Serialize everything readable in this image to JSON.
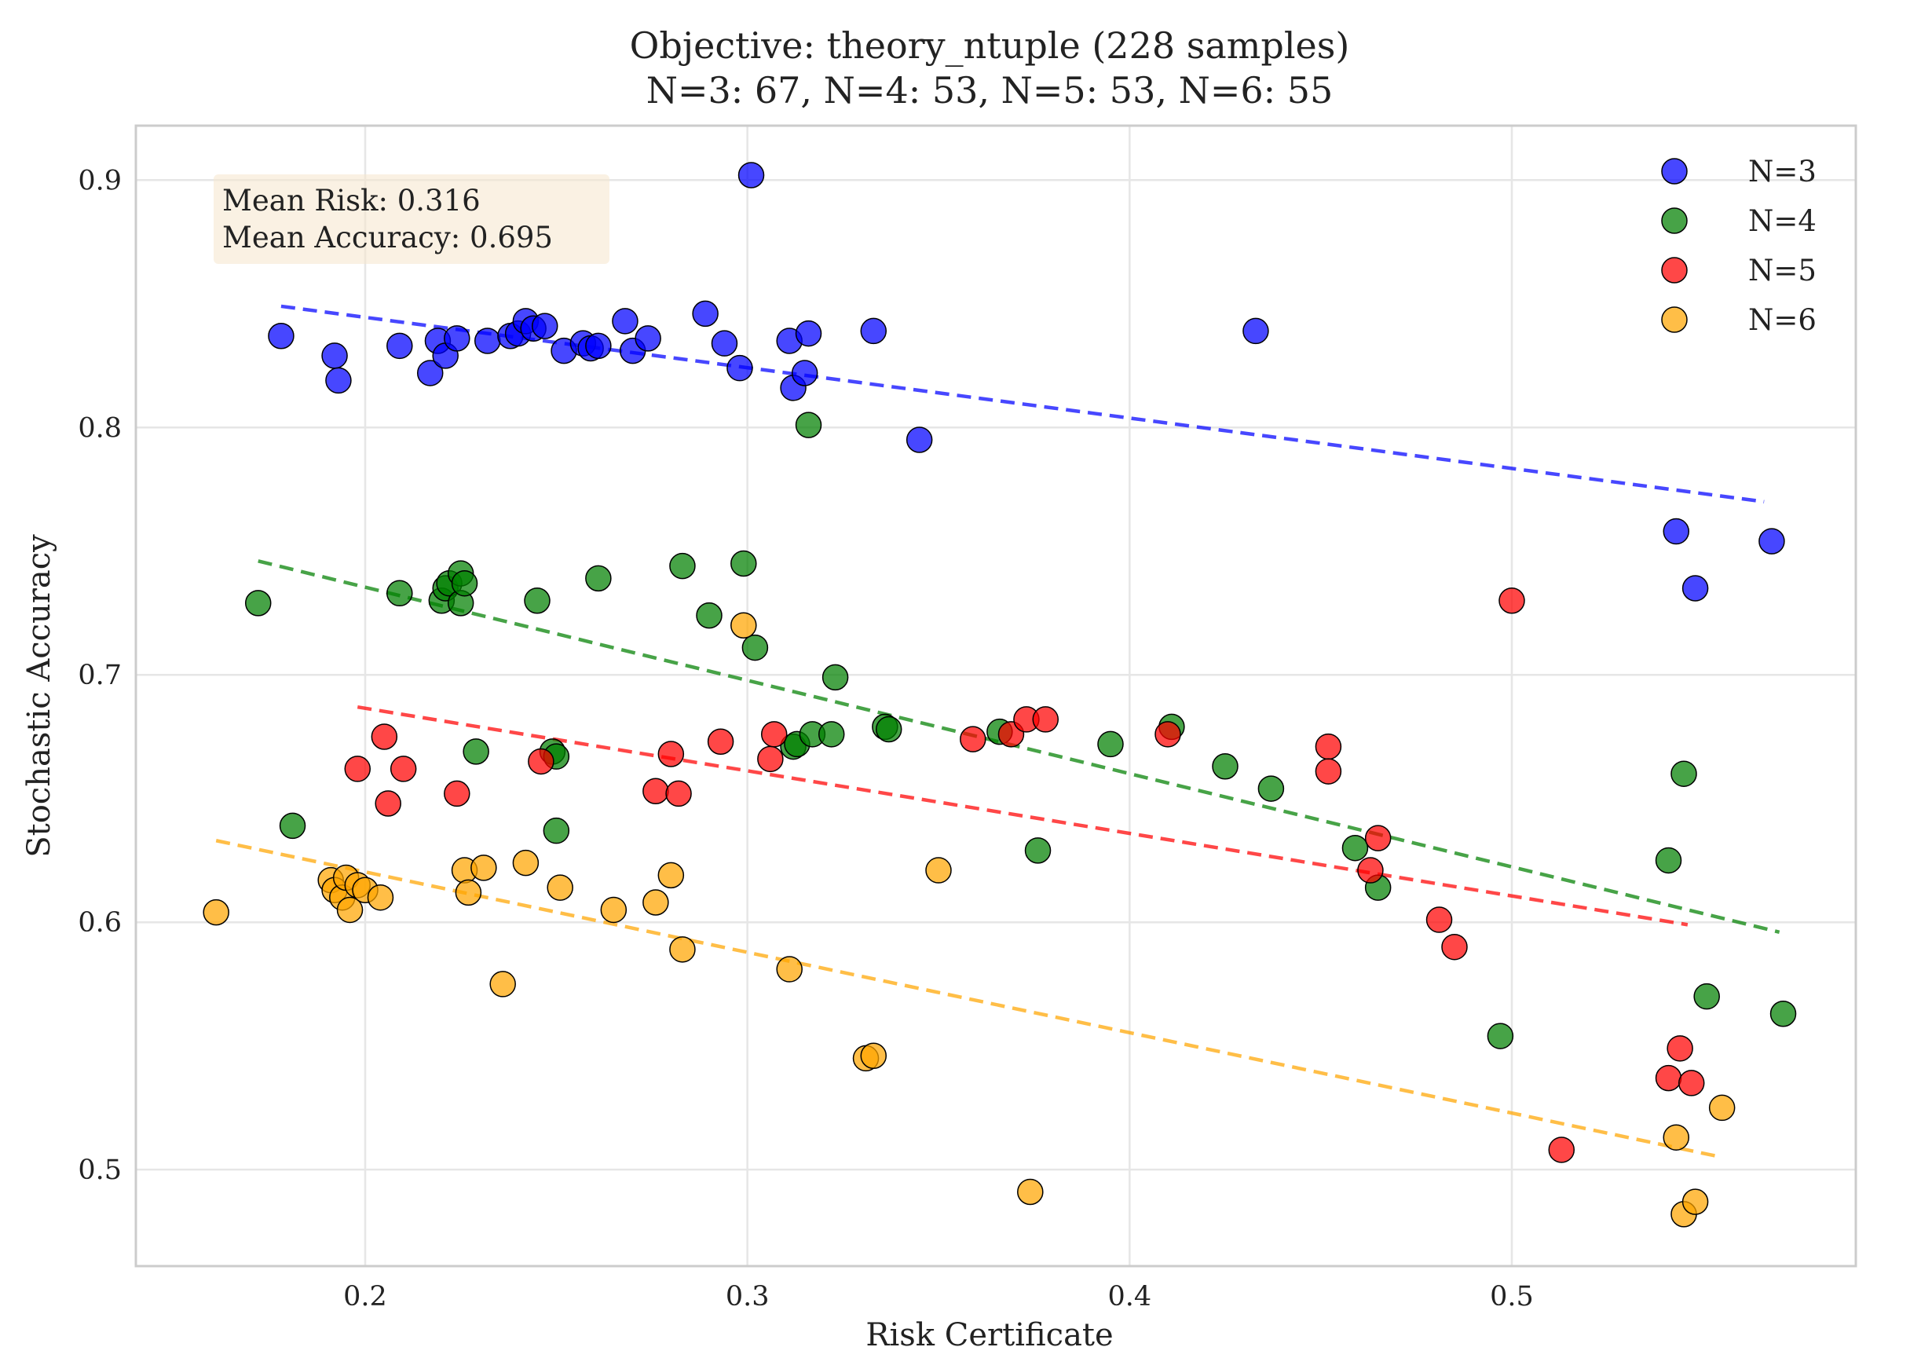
{
  "chart_data": {
    "type": "scatter",
    "title_line1": "Objective: theory_ntuple (228 samples)",
    "title_line2": "N=3: 67, N=4: 53, N=5: 53, N=6: 55",
    "xlabel": "Risk Certificate",
    "ylabel": "Stochastic Accuracy",
    "xlim": [
      0.14,
      0.59
    ],
    "ylim": [
      0.461,
      0.922
    ],
    "xticks": [
      0.2,
      0.3,
      0.4,
      0.5
    ],
    "xtick_labels": [
      "0.2",
      "0.3",
      "0.4",
      "0.5"
    ],
    "yticks": [
      0.5,
      0.6,
      0.7,
      0.8,
      0.9
    ],
    "ytick_labels": [
      "0.5",
      "0.6",
      "0.7",
      "0.8",
      "0.9"
    ],
    "grid": true,
    "legend_position": "top-right",
    "stats_box": {
      "line1": "Mean Risk: 0.316",
      "line2": "Mean Accuracy: 0.695",
      "background": "#f5e6cc"
    },
    "series": [
      {
        "name": "N=3",
        "color": "#0000ff",
        "trend": [
          [
            0.178,
            0.849
          ],
          [
            0.566,
            0.77
          ]
        ],
        "points": [
          [
            0.178,
            0.837
          ],
          [
            0.192,
            0.829
          ],
          [
            0.193,
            0.819
          ],
          [
            0.209,
            0.833
          ],
          [
            0.217,
            0.822
          ],
          [
            0.219,
            0.835
          ],
          [
            0.221,
            0.829
          ],
          [
            0.224,
            0.836
          ],
          [
            0.232,
            0.835
          ],
          [
            0.238,
            0.837
          ],
          [
            0.24,
            0.838
          ],
          [
            0.242,
            0.843
          ],
          [
            0.244,
            0.84
          ],
          [
            0.247,
            0.841
          ],
          [
            0.252,
            0.831
          ],
          [
            0.257,
            0.834
          ],
          [
            0.259,
            0.832
          ],
          [
            0.261,
            0.833
          ],
          [
            0.268,
            0.843
          ],
          [
            0.27,
            0.831
          ],
          [
            0.274,
            0.836
          ],
          [
            0.289,
            0.846
          ],
          [
            0.294,
            0.834
          ],
          [
            0.298,
            0.824
          ],
          [
            0.301,
            0.902
          ],
          [
            0.311,
            0.835
          ],
          [
            0.312,
            0.816
          ],
          [
            0.315,
            0.822
          ],
          [
            0.316,
            0.838
          ],
          [
            0.333,
            0.839
          ],
          [
            0.345,
            0.795
          ],
          [
            0.433,
            0.839
          ],
          [
            0.543,
            0.758
          ],
          [
            0.548,
            0.735
          ],
          [
            0.568,
            0.754
          ]
        ]
      },
      {
        "name": "N=4",
        "color": "#008000",
        "trend": [
          [
            0.172,
            0.746
          ],
          [
            0.57,
            0.596
          ]
        ],
        "points": [
          [
            0.172,
            0.729
          ],
          [
            0.181,
            0.639
          ],
          [
            0.209,
            0.733
          ],
          [
            0.22,
            0.73
          ],
          [
            0.221,
            0.735
          ],
          [
            0.222,
            0.737
          ],
          [
            0.225,
            0.741
          ],
          [
            0.225,
            0.729
          ],
          [
            0.226,
            0.737
          ],
          [
            0.229,
            0.669
          ],
          [
            0.245,
            0.73
          ],
          [
            0.249,
            0.669
          ],
          [
            0.25,
            0.667
          ],
          [
            0.25,
            0.637
          ],
          [
            0.261,
            0.739
          ],
          [
            0.283,
            0.744
          ],
          [
            0.29,
            0.724
          ],
          [
            0.299,
            0.745
          ],
          [
            0.302,
            0.711
          ],
          [
            0.312,
            0.671
          ],
          [
            0.313,
            0.672
          ],
          [
            0.316,
            0.801
          ],
          [
            0.317,
            0.676
          ],
          [
            0.322,
            0.676
          ],
          [
            0.323,
            0.699
          ],
          [
            0.336,
            0.679
          ],
          [
            0.337,
            0.678
          ],
          [
            0.366,
            0.677
          ],
          [
            0.376,
            0.629
          ],
          [
            0.395,
            0.672
          ],
          [
            0.411,
            0.679
          ],
          [
            0.425,
            0.663
          ],
          [
            0.437,
            0.654
          ],
          [
            0.459,
            0.63
          ],
          [
            0.465,
            0.614
          ],
          [
            0.497,
            0.554
          ],
          [
            0.541,
            0.625
          ],
          [
            0.545,
            0.66
          ],
          [
            0.551,
            0.57
          ],
          [
            0.571,
            0.563
          ]
        ]
      },
      {
        "name": "N=5",
        "color": "#ff0000",
        "trend": [
          [
            0.198,
            0.687
          ],
          [
            0.546,
            0.599
          ]
        ],
        "points": [
          [
            0.198,
            0.662
          ],
          [
            0.205,
            0.675
          ],
          [
            0.206,
            0.648
          ],
          [
            0.21,
            0.662
          ],
          [
            0.224,
            0.652
          ],
          [
            0.246,
            0.665
          ],
          [
            0.276,
            0.653
          ],
          [
            0.28,
            0.668
          ],
          [
            0.282,
            0.652
          ],
          [
            0.293,
            0.673
          ],
          [
            0.306,
            0.666
          ],
          [
            0.307,
            0.676
          ],
          [
            0.359,
            0.674
          ],
          [
            0.369,
            0.676
          ],
          [
            0.373,
            0.682
          ],
          [
            0.378,
            0.682
          ],
          [
            0.41,
            0.676
          ],
          [
            0.452,
            0.671
          ],
          [
            0.452,
            0.661
          ],
          [
            0.463,
            0.621
          ],
          [
            0.465,
            0.634
          ],
          [
            0.481,
            0.601
          ],
          [
            0.485,
            0.59
          ],
          [
            0.5,
            0.73
          ],
          [
            0.513,
            0.508
          ],
          [
            0.541,
            0.537
          ],
          [
            0.544,
            0.549
          ],
          [
            0.547,
            0.535
          ]
        ]
      },
      {
        "name": "N=6",
        "color": "#ffa500",
        "trend": [
          [
            0.161,
            0.633
          ],
          [
            0.555,
            0.505
          ]
        ],
        "points": [
          [
            0.161,
            0.604
          ],
          [
            0.191,
            0.617
          ],
          [
            0.192,
            0.613
          ],
          [
            0.194,
            0.61
          ],
          [
            0.195,
            0.618
          ],
          [
            0.196,
            0.605
          ],
          [
            0.198,
            0.615
          ],
          [
            0.2,
            0.613
          ],
          [
            0.204,
            0.61
          ],
          [
            0.226,
            0.621
          ],
          [
            0.227,
            0.612
          ],
          [
            0.231,
            0.622
          ],
          [
            0.236,
            0.575
          ],
          [
            0.242,
            0.624
          ],
          [
            0.251,
            0.614
          ],
          [
            0.265,
            0.605
          ],
          [
            0.276,
            0.608
          ],
          [
            0.28,
            0.619
          ],
          [
            0.283,
            0.589
          ],
          [
            0.299,
            0.72
          ],
          [
            0.311,
            0.581
          ],
          [
            0.331,
            0.545
          ],
          [
            0.333,
            0.546
          ],
          [
            0.35,
            0.621
          ],
          [
            0.374,
            0.491
          ],
          [
            0.543,
            0.513
          ],
          [
            0.545,
            0.482
          ],
          [
            0.548,
            0.487
          ],
          [
            0.555,
            0.525
          ]
        ]
      }
    ]
  }
}
